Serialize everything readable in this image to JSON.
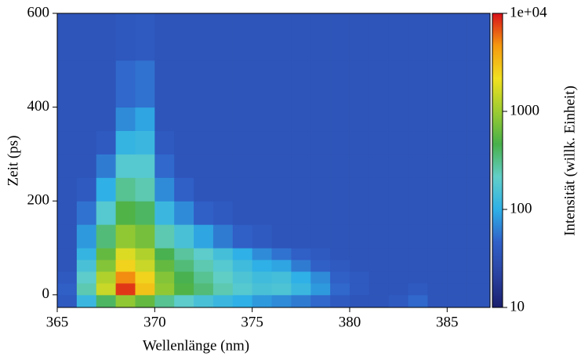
{
  "chart_data": {
    "type": "heatmap",
    "xlabel": "Wellenlänge (nm)",
    "ylabel": "Zeit (ps)",
    "colorbar_label": "Intensität (willk. Einheit)",
    "xlim": [
      365,
      387.2
    ],
    "xticks": [
      365,
      370,
      375,
      380,
      385
    ],
    "ylim": [
      -27,
      600
    ],
    "yticks": [
      0,
      200,
      400,
      600
    ],
    "xbins": [
      365,
      366,
      367,
      368,
      369,
      370,
      371,
      372,
      373,
      374,
      375,
      376,
      377,
      378,
      379,
      380,
      381,
      382,
      383,
      384,
      385,
      386,
      387.2
    ],
    "ybins": [
      -27,
      0,
      25,
      50,
      75,
      100,
      150,
      200,
      250,
      300,
      350,
      400,
      500,
      600
    ],
    "zlim": [
      10,
      10000
    ],
    "zscale": "log",
    "zticks": [
      10,
      100,
      1000,
      {
        "value": 10000,
        "label": "1e+04"
      }
    ],
    "colormap": [
      "#1a1f6e",
      "#2a42a0",
      "#3060c8",
      "#2fb0e6",
      "#62cfc8",
      "#48b04a",
      "#9ccc30",
      "#f0e020",
      "#f59a10",
      "#d8101a"
    ],
    "z": [
      [
        40,
        120,
        400,
        900,
        600,
        300,
        200,
        150,
        120,
        100,
        80,
        70,
        60,
        50,
        40,
        35,
        35,
        40,
        50,
        35,
        35,
        35
      ],
      [
        45,
        250,
        1500,
        8000,
        3000,
        900,
        500,
        350,
        250,
        180,
        150,
        160,
        120,
        80,
        50,
        40,
        35,
        35,
        40,
        35,
        35,
        35
      ],
      [
        40,
        200,
        1200,
        5000,
        2500,
        800,
        450,
        300,
        220,
        160,
        130,
        140,
        100,
        70,
        45,
        40,
        35,
        35,
        35,
        35,
        35,
        35
      ],
      [
        35,
        150,
        800,
        2500,
        1500,
        600,
        350,
        250,
        180,
        130,
        100,
        90,
        60,
        45,
        40,
        35,
        35,
        35,
        35,
        35,
        35,
        35
      ],
      [
        35,
        110,
        600,
        1800,
        1200,
        450,
        280,
        200,
        140,
        100,
        70,
        55,
        45,
        40,
        35,
        35,
        35,
        35,
        35,
        35,
        35,
        35
      ],
      [
        35,
        80,
        350,
        900,
        700,
        250,
        150,
        90,
        60,
        45,
        40,
        35,
        35,
        35,
        35,
        35,
        35,
        35,
        35,
        35,
        35,
        35
      ],
      [
        35,
        55,
        180,
        500,
        400,
        120,
        70,
        45,
        40,
        35,
        35,
        35,
        35,
        35,
        35,
        35,
        35,
        35,
        35,
        35,
        35,
        35
      ],
      [
        35,
        40,
        100,
        300,
        250,
        70,
        45,
        35,
        35,
        35,
        35,
        35,
        35,
        35,
        35,
        35,
        35,
        35,
        35,
        35,
        35,
        35
      ],
      [
        35,
        35,
        60,
        180,
        180,
        50,
        35,
        35,
        35,
        35,
        35,
        35,
        35,
        35,
        35,
        35,
        35,
        35,
        35,
        35,
        35,
        35
      ],
      [
        35,
        35,
        40,
        110,
        120,
        40,
        35,
        35,
        35,
        35,
        35,
        35,
        35,
        35,
        35,
        35,
        35,
        35,
        35,
        35,
        35,
        35
      ],
      [
        35,
        35,
        35,
        70,
        90,
        35,
        35,
        35,
        35,
        35,
        35,
        35,
        35,
        35,
        35,
        35,
        35,
        35,
        35,
        35,
        35,
        35
      ],
      [
        35,
        35,
        35,
        50,
        55,
        35,
        35,
        35,
        35,
        35,
        35,
        35,
        35,
        35,
        35,
        35,
        35,
        35,
        35,
        35,
        35,
        35
      ],
      [
        35,
        35,
        35,
        38,
        40,
        35,
        35,
        35,
        35,
        35,
        35,
        35,
        35,
        35,
        35,
        35,
        35,
        35,
        35,
        35,
        35,
        35
      ]
    ]
  }
}
